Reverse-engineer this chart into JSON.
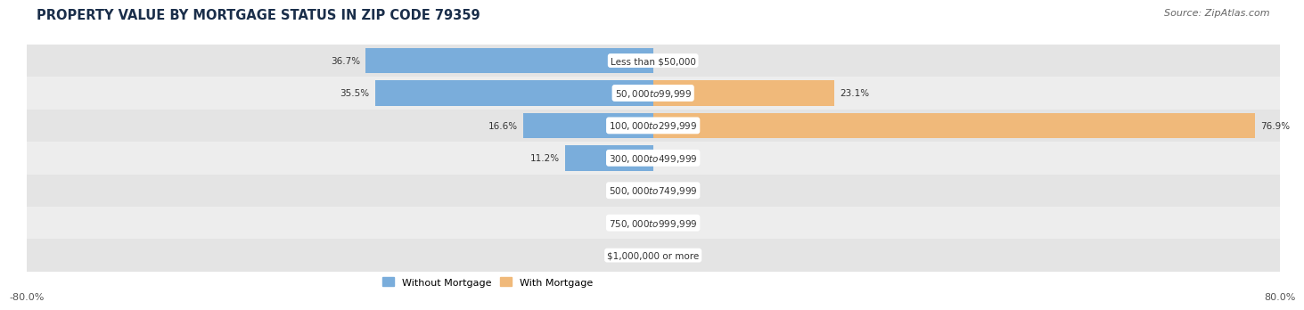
{
  "title": "PROPERTY VALUE BY MORTGAGE STATUS IN ZIP CODE 79359",
  "source": "Source: ZipAtlas.com",
  "categories": [
    "Less than $50,000",
    "$50,000 to $99,999",
    "$100,000 to $299,999",
    "$300,000 to $499,999",
    "$500,000 to $749,999",
    "$750,000 to $999,999",
    "$1,000,000 or more"
  ],
  "without_mortgage": [
    36.7,
    35.5,
    16.6,
    11.2,
    0.0,
    0.0,
    0.0
  ],
  "with_mortgage": [
    0.0,
    23.1,
    76.9,
    0.0,
    0.0,
    0.0,
    0.0
  ],
  "bar_color_without": "#7aaddb",
  "bar_color_with": "#f0b97a",
  "row_colors": [
    "#e4e4e4",
    "#ededed"
  ],
  "title_fontsize": 10.5,
  "source_fontsize": 8,
  "xlim": [
    -80,
    80
  ],
  "legend_without": "Without Mortgage",
  "legend_with": "With Mortgage",
  "label_fontsize": 7.5,
  "cat_fontsize": 7.5
}
